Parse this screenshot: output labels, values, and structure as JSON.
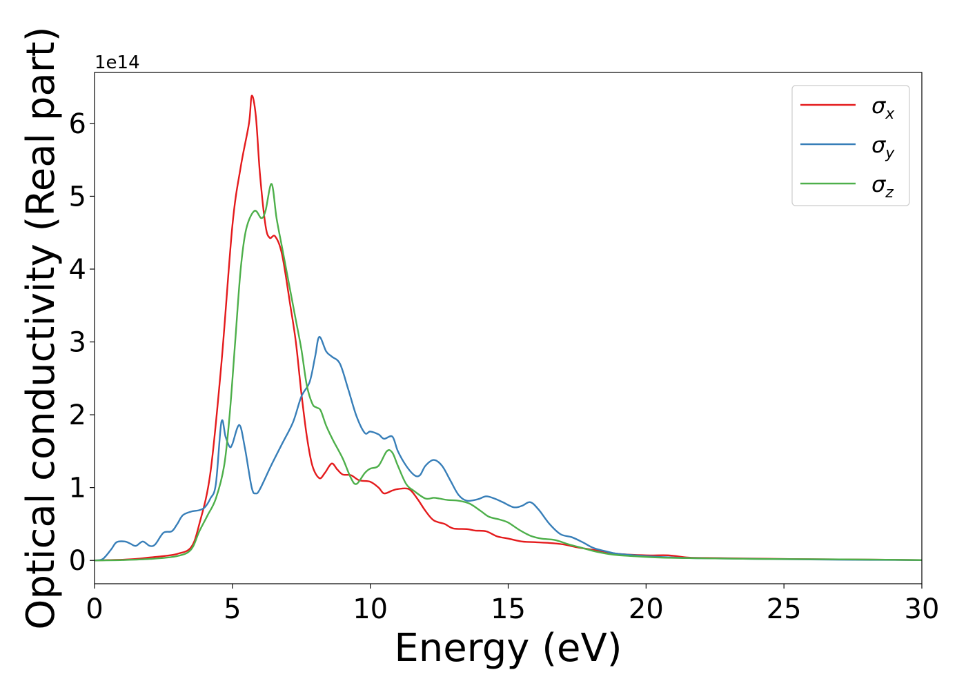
{
  "chart_data": {
    "type": "line",
    "xlabel": "Energy (eV)",
    "ylabel": "Optical conductivity (Real part)",
    "y_offset_label": "1e14",
    "xlim": [
      0,
      30
    ],
    "ylim": [
      -0.32,
      6.7
    ],
    "grid": false,
    "legend_position": "top-right",
    "x_ticks": [
      0,
      5,
      10,
      15,
      20,
      25,
      30
    ],
    "y_ticks": [
      0,
      1,
      2,
      3,
      4,
      5,
      6
    ],
    "series": [
      {
        "name": "σx",
        "symbol": "σ",
        "subscript": "x",
        "color": "#e41a1c",
        "points": [
          [
            0,
            0
          ],
          [
            0.5,
            0.005
          ],
          [
            1,
            0.01
          ],
          [
            1.5,
            0.02
          ],
          [
            2,
            0.04
          ],
          [
            2.5,
            0.06
          ],
          [
            3,
            0.09
          ],
          [
            3.5,
            0.18
          ],
          [
            3.8,
            0.5
          ],
          [
            4.2,
            1.2
          ],
          [
            4.6,
            2.7
          ],
          [
            5.0,
            4.6
          ],
          [
            5.3,
            5.4
          ],
          [
            5.6,
            6.0
          ],
          [
            5.7,
            6.38
          ],
          [
            5.85,
            6.1
          ],
          [
            6.0,
            5.3
          ],
          [
            6.2,
            4.6
          ],
          [
            6.35,
            4.43
          ],
          [
            6.55,
            4.45
          ],
          [
            6.8,
            4.2
          ],
          [
            7.1,
            3.5
          ],
          [
            7.3,
            3.0
          ],
          [
            7.5,
            2.3
          ],
          [
            7.7,
            1.7
          ],
          [
            7.9,
            1.3
          ],
          [
            8.15,
            1.13
          ],
          [
            8.35,
            1.2
          ],
          [
            8.6,
            1.33
          ],
          [
            8.8,
            1.25
          ],
          [
            9.0,
            1.18
          ],
          [
            9.3,
            1.17
          ],
          [
            9.6,
            1.1
          ],
          [
            10.0,
            1.08
          ],
          [
            10.3,
            1.0
          ],
          [
            10.5,
            0.92
          ],
          [
            10.8,
            0.96
          ],
          [
            11.0,
            0.98
          ],
          [
            11.4,
            0.98
          ],
          [
            11.7,
            0.85
          ],
          [
            12.0,
            0.68
          ],
          [
            12.3,
            0.55
          ],
          [
            12.7,
            0.5
          ],
          [
            13.0,
            0.44
          ],
          [
            13.5,
            0.43
          ],
          [
            13.8,
            0.41
          ],
          [
            14.2,
            0.4
          ],
          [
            14.6,
            0.33
          ],
          [
            15,
            0.3
          ],
          [
            15.5,
            0.26
          ],
          [
            16,
            0.25
          ],
          [
            16.5,
            0.24
          ],
          [
            17,
            0.22
          ],
          [
            17.5,
            0.18
          ],
          [
            18,
            0.15
          ],
          [
            18.5,
            0.12
          ],
          [
            19,
            0.09
          ],
          [
            20,
            0.07
          ],
          [
            20.8,
            0.07
          ],
          [
            21.5,
            0.04
          ],
          [
            22,
            0.035
          ],
          [
            23,
            0.03
          ],
          [
            24,
            0.025
          ],
          [
            25,
            0.02
          ],
          [
            27,
            0.015
          ],
          [
            30,
            0.005
          ]
        ]
      },
      {
        "name": "σy",
        "symbol": "σ",
        "subscript": "y",
        "color": "#377eb8",
        "points": [
          [
            0,
            0
          ],
          [
            0.3,
            0.02
          ],
          [
            0.6,
            0.15
          ],
          [
            0.8,
            0.25
          ],
          [
            1.1,
            0.26
          ],
          [
            1.3,
            0.23
          ],
          [
            1.5,
            0.2
          ],
          [
            1.75,
            0.26
          ],
          [
            2.0,
            0.2
          ],
          [
            2.2,
            0.22
          ],
          [
            2.5,
            0.38
          ],
          [
            2.8,
            0.4
          ],
          [
            3.0,
            0.5
          ],
          [
            3.2,
            0.62
          ],
          [
            3.5,
            0.67
          ],
          [
            3.8,
            0.69
          ],
          [
            4.0,
            0.73
          ],
          [
            4.2,
            0.85
          ],
          [
            4.4,
            1.05
          ],
          [
            4.6,
            1.9
          ],
          [
            4.75,
            1.7
          ],
          [
            4.9,
            1.56
          ],
          [
            5.0,
            1.6
          ],
          [
            5.25,
            1.86
          ],
          [
            5.45,
            1.55
          ],
          [
            5.7,
            1.0
          ],
          [
            5.85,
            0.92
          ],
          [
            6.0,
            0.98
          ],
          [
            6.4,
            1.3
          ],
          [
            6.8,
            1.6
          ],
          [
            7.2,
            1.9
          ],
          [
            7.5,
            2.25
          ],
          [
            7.8,
            2.45
          ],
          [
            8.0,
            2.8
          ],
          [
            8.15,
            3.07
          ],
          [
            8.4,
            2.87
          ],
          [
            8.6,
            2.8
          ],
          [
            8.9,
            2.7
          ],
          [
            9.2,
            2.35
          ],
          [
            9.5,
            1.98
          ],
          [
            9.8,
            1.75
          ],
          [
            10.0,
            1.77
          ],
          [
            10.3,
            1.73
          ],
          [
            10.5,
            1.67
          ],
          [
            10.8,
            1.7
          ],
          [
            11.0,
            1.5
          ],
          [
            11.3,
            1.3
          ],
          [
            11.6,
            1.17
          ],
          [
            11.8,
            1.17
          ],
          [
            12.0,
            1.3
          ],
          [
            12.3,
            1.38
          ],
          [
            12.6,
            1.3
          ],
          [
            12.9,
            1.1
          ],
          [
            13.2,
            0.9
          ],
          [
            13.5,
            0.82
          ],
          [
            13.9,
            0.84
          ],
          [
            14.2,
            0.88
          ],
          [
            14.5,
            0.85
          ],
          [
            14.8,
            0.8
          ],
          [
            15.2,
            0.73
          ],
          [
            15.5,
            0.75
          ],
          [
            15.8,
            0.8
          ],
          [
            16.1,
            0.7
          ],
          [
            16.5,
            0.5
          ],
          [
            16.9,
            0.36
          ],
          [
            17.3,
            0.32
          ],
          [
            17.7,
            0.25
          ],
          [
            18.1,
            0.17
          ],
          [
            18.6,
            0.12
          ],
          [
            19,
            0.09
          ],
          [
            20,
            0.06
          ],
          [
            21,
            0.04
          ],
          [
            22,
            0.03
          ],
          [
            24,
            0.02
          ],
          [
            27,
            0.01
          ],
          [
            30,
            0.005
          ]
        ]
      },
      {
        "name": "σz",
        "symbol": "σ",
        "subscript": "z",
        "color": "#4daf4a",
        "points": [
          [
            0,
            0
          ],
          [
            1,
            0.005
          ],
          [
            2,
            0.02
          ],
          [
            3,
            0.06
          ],
          [
            3.5,
            0.15
          ],
          [
            3.8,
            0.4
          ],
          [
            4.1,
            0.62
          ],
          [
            4.4,
            0.85
          ],
          [
            4.7,
            1.3
          ],
          [
            4.9,
            2.0
          ],
          [
            5.1,
            3.0
          ],
          [
            5.3,
            4.0
          ],
          [
            5.5,
            4.55
          ],
          [
            5.8,
            4.8
          ],
          [
            6.05,
            4.7
          ],
          [
            6.2,
            4.8
          ],
          [
            6.42,
            5.17
          ],
          [
            6.6,
            4.7
          ],
          [
            6.8,
            4.3
          ],
          [
            7.0,
            3.9
          ],
          [
            7.3,
            3.3
          ],
          [
            7.5,
            2.9
          ],
          [
            7.7,
            2.4
          ],
          [
            7.9,
            2.15
          ],
          [
            8.05,
            2.1
          ],
          [
            8.2,
            2.06
          ],
          [
            8.4,
            1.85
          ],
          [
            8.65,
            1.65
          ],
          [
            9.0,
            1.4
          ],
          [
            9.3,
            1.13
          ],
          [
            9.5,
            1.05
          ],
          [
            9.8,
            1.2
          ],
          [
            10.0,
            1.26
          ],
          [
            10.3,
            1.3
          ],
          [
            10.6,
            1.5
          ],
          [
            10.8,
            1.48
          ],
          [
            11.0,
            1.3
          ],
          [
            11.3,
            1.05
          ],
          [
            11.6,
            0.95
          ],
          [
            12.0,
            0.85
          ],
          [
            12.3,
            0.86
          ],
          [
            12.5,
            0.85
          ],
          [
            12.8,
            0.83
          ],
          [
            13.2,
            0.82
          ],
          [
            13.6,
            0.78
          ],
          [
            14.0,
            0.68
          ],
          [
            14.3,
            0.6
          ],
          [
            14.7,
            0.56
          ],
          [
            15.0,
            0.52
          ],
          [
            15.4,
            0.42
          ],
          [
            15.8,
            0.34
          ],
          [
            16.2,
            0.3
          ],
          [
            16.7,
            0.28
          ],
          [
            17.2,
            0.22
          ],
          [
            17.7,
            0.17
          ],
          [
            18.2,
            0.12
          ],
          [
            18.8,
            0.08
          ],
          [
            19.5,
            0.06
          ],
          [
            20.5,
            0.04
          ],
          [
            22,
            0.03
          ],
          [
            24,
            0.02
          ],
          [
            27,
            0.015
          ],
          [
            30,
            0.005
          ]
        ]
      }
    ]
  }
}
